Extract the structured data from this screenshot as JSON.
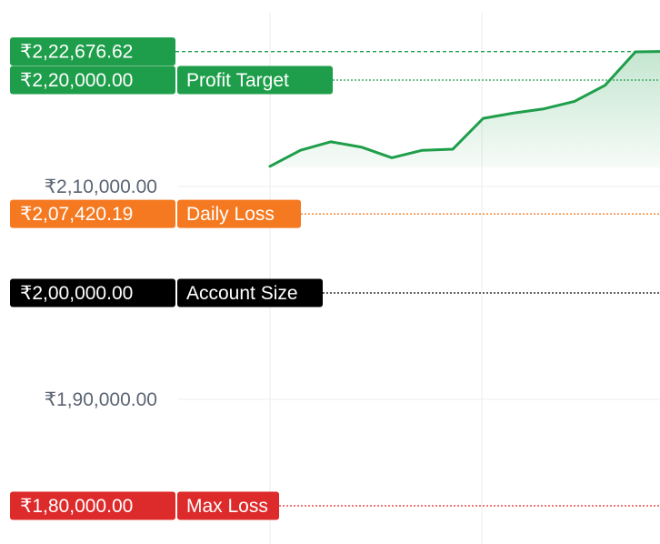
{
  "chart_data": {
    "type": "area",
    "title": "",
    "xlabel": "",
    "ylabel": "",
    "ylim": [
      178000,
      224000
    ],
    "y_ticks": [
      {
        "value": 210000,
        "label": "₹2,10,000.00"
      },
      {
        "value": 190000,
        "label": "₹1,90,000.00"
      }
    ],
    "grid": true,
    "current_value": {
      "value": 222676.62,
      "label": "₹2,22,676.62",
      "color": "#1e9e4a"
    },
    "series": [
      {
        "color": "#1e9e4a",
        "x": [
          0,
          1,
          2,
          3,
          4,
          5,
          6,
          7,
          8,
          9,
          10,
          11,
          12,
          13
        ],
        "values": [
          211900,
          213400,
          214200,
          213700,
          212700,
          213400,
          213500,
          216400,
          216900,
          217300,
          218000,
          219500,
          222650,
          222676.62
        ]
      }
    ],
    "thresholds": [
      {
        "name": "Profit Target",
        "value": 220000,
        "label": "₹2,20,000.00",
        "color": "#1e9e4a"
      },
      {
        "name": "Daily Loss",
        "value": 207420.19,
        "label": "₹2,07,420.19",
        "color": "#f47920"
      },
      {
        "name": "Account Size",
        "value": 200000,
        "label": "₹2,00,000.00",
        "color": "#000000"
      },
      {
        "name": "Max Loss",
        "value": 180000,
        "label": "₹1,80,000.00",
        "color": "#dd2a2a"
      }
    ]
  }
}
